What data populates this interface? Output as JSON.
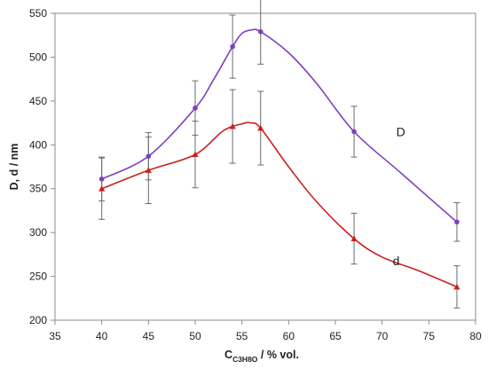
{
  "chart_data": {
    "type": "line",
    "xlabel_parts": {
      "main": "C",
      "sub": "C3H8O",
      "rest": " / % vol."
    },
    "ylabel": "D, d / nm",
    "xlim": [
      35,
      80
    ],
    "ylim": [
      200,
      550
    ],
    "xticks": [
      35,
      40,
      45,
      50,
      55,
      60,
      65,
      70,
      75,
      80
    ],
    "yticks": [
      200,
      250,
      300,
      350,
      400,
      450,
      500,
      550
    ],
    "grid": false,
    "series": [
      {
        "name": "D",
        "color": "#7f3fbf",
        "marker": "circle",
        "x": [
          40,
          45,
          50,
          54,
          57,
          67,
          78
        ],
        "y": [
          361,
          387,
          442,
          512,
          529,
          415,
          312
        ],
        "err": [
          25,
          27,
          31,
          36,
          37,
          29,
          22
        ],
        "curve": [
          [
            40,
            361
          ],
          [
            45,
            387
          ],
          [
            50,
            442
          ],
          [
            52,
            475
          ],
          [
            54,
            512
          ],
          [
            55,
            527
          ],
          [
            56,
            531
          ],
          [
            57,
            529
          ],
          [
            60,
            505
          ],
          [
            63,
            470
          ],
          [
            67,
            415
          ],
          [
            72,
            368
          ],
          [
            78,
            312
          ]
        ]
      },
      {
        "name": "d",
        "color": "#cc1f1f",
        "marker": "triangle",
        "x": [
          40,
          45,
          50,
          54,
          57,
          67,
          78
        ],
        "y": [
          350,
          371,
          389,
          421,
          419,
          293,
          238
        ],
        "err": [
          35,
          38,
          38,
          42,
          42,
          29,
          24
        ],
        "curve": [
          [
            40,
            350
          ],
          [
            45,
            371
          ],
          [
            50,
            389
          ],
          [
            53,
            416
          ],
          [
            55,
            424
          ],
          [
            56,
            425
          ],
          [
            57,
            419
          ],
          [
            60,
            375
          ],
          [
            63,
            335
          ],
          [
            67,
            293
          ],
          [
            70,
            272
          ],
          [
            74,
            256
          ],
          [
            78,
            238
          ]
        ]
      }
    ]
  }
}
